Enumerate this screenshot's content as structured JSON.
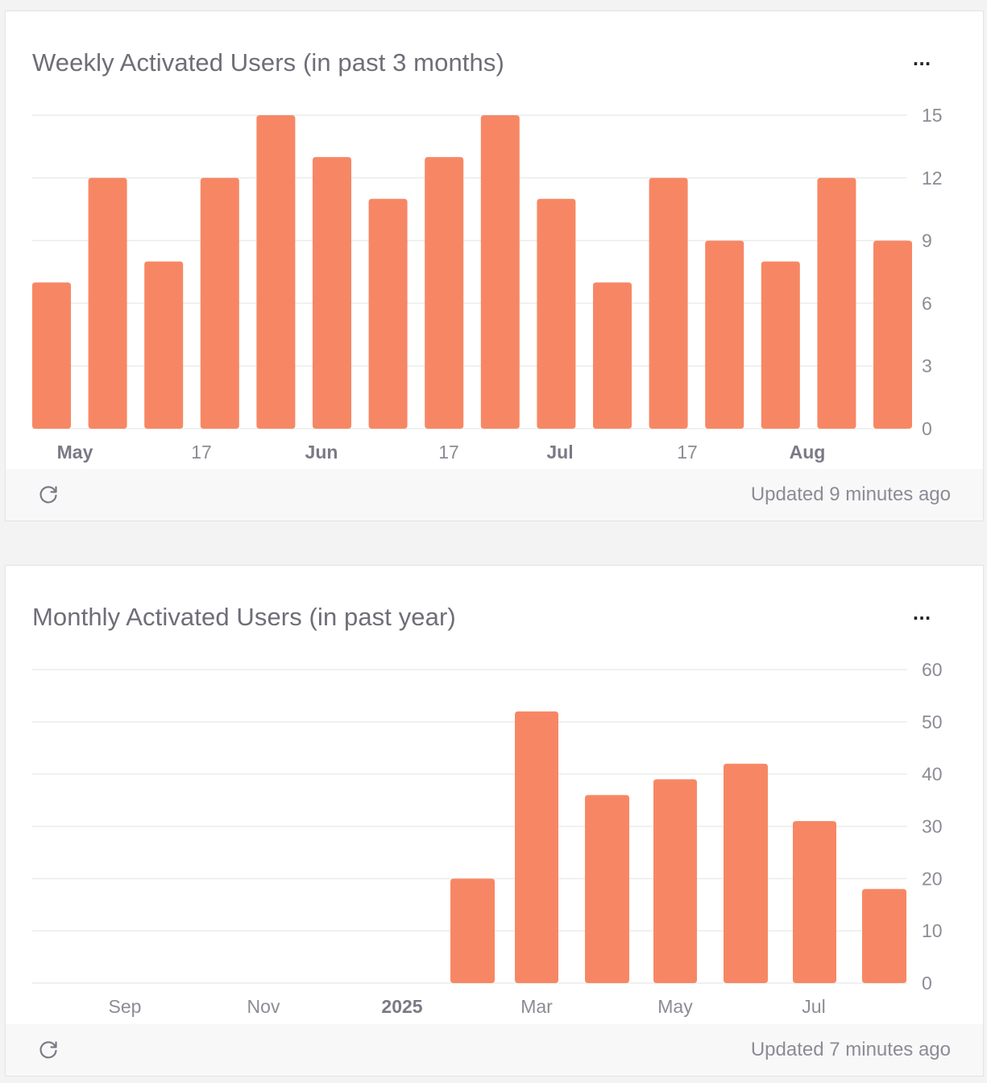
{
  "colors": {
    "bar": "#f78764",
    "grid": "#ececec",
    "tick": "#8c8c96",
    "tick_bold": "#7a7a86"
  },
  "charts": [
    {
      "title": "Weekly Activated Users (in past 3 months)",
      "more_label": "···",
      "refresh_icon": "refresh-icon",
      "updated_text": "Updated 9 minutes ago",
      "chart_data": {
        "type": "bar",
        "title": "Weekly Activated Users (in past 3 months)",
        "xlabel": "",
        "ylabel": "",
        "ylim": [
          0,
          15
        ],
        "yticks": [
          0,
          3,
          6,
          9,
          12,
          15
        ],
        "grid": true,
        "legend": "none",
        "values": [
          7,
          12,
          8,
          12,
          15,
          13,
          11,
          13,
          15,
          11,
          7,
          12,
          9,
          8,
          12,
          9
        ],
        "xtick_labels": [
          {
            "label": "May",
            "bold": true
          },
          {
            "label": "17",
            "bold": false
          },
          {
            "label": "Jun",
            "bold": true
          },
          {
            "label": "17",
            "bold": false
          },
          {
            "label": "Jul",
            "bold": true
          },
          {
            "label": "17",
            "bold": false
          },
          {
            "label": "Aug",
            "bold": true
          }
        ]
      }
    },
    {
      "title": "Monthly Activated Users (in past year)",
      "more_label": "···",
      "refresh_icon": "refresh-icon",
      "updated_text": "Updated 7 minutes ago",
      "chart_data": {
        "type": "bar",
        "title": "Monthly Activated Users (in past year)",
        "xlabel": "",
        "ylabel": "",
        "ylim": [
          0,
          60
        ],
        "yticks": [
          0,
          10,
          20,
          30,
          40,
          50,
          60
        ],
        "grid": true,
        "legend": "none",
        "values": [
          0,
          0,
          0,
          0,
          0,
          0,
          20,
          52,
          36,
          39,
          42,
          31,
          18
        ],
        "xtick_labels": [
          {
            "label": "Sep",
            "bold": false
          },
          {
            "label": "Nov",
            "bold": false
          },
          {
            "label": "2025",
            "bold": true
          },
          {
            "label": "Mar",
            "bold": false
          },
          {
            "label": "May",
            "bold": false
          },
          {
            "label": "Jul",
            "bold": false
          }
        ]
      }
    }
  ]
}
